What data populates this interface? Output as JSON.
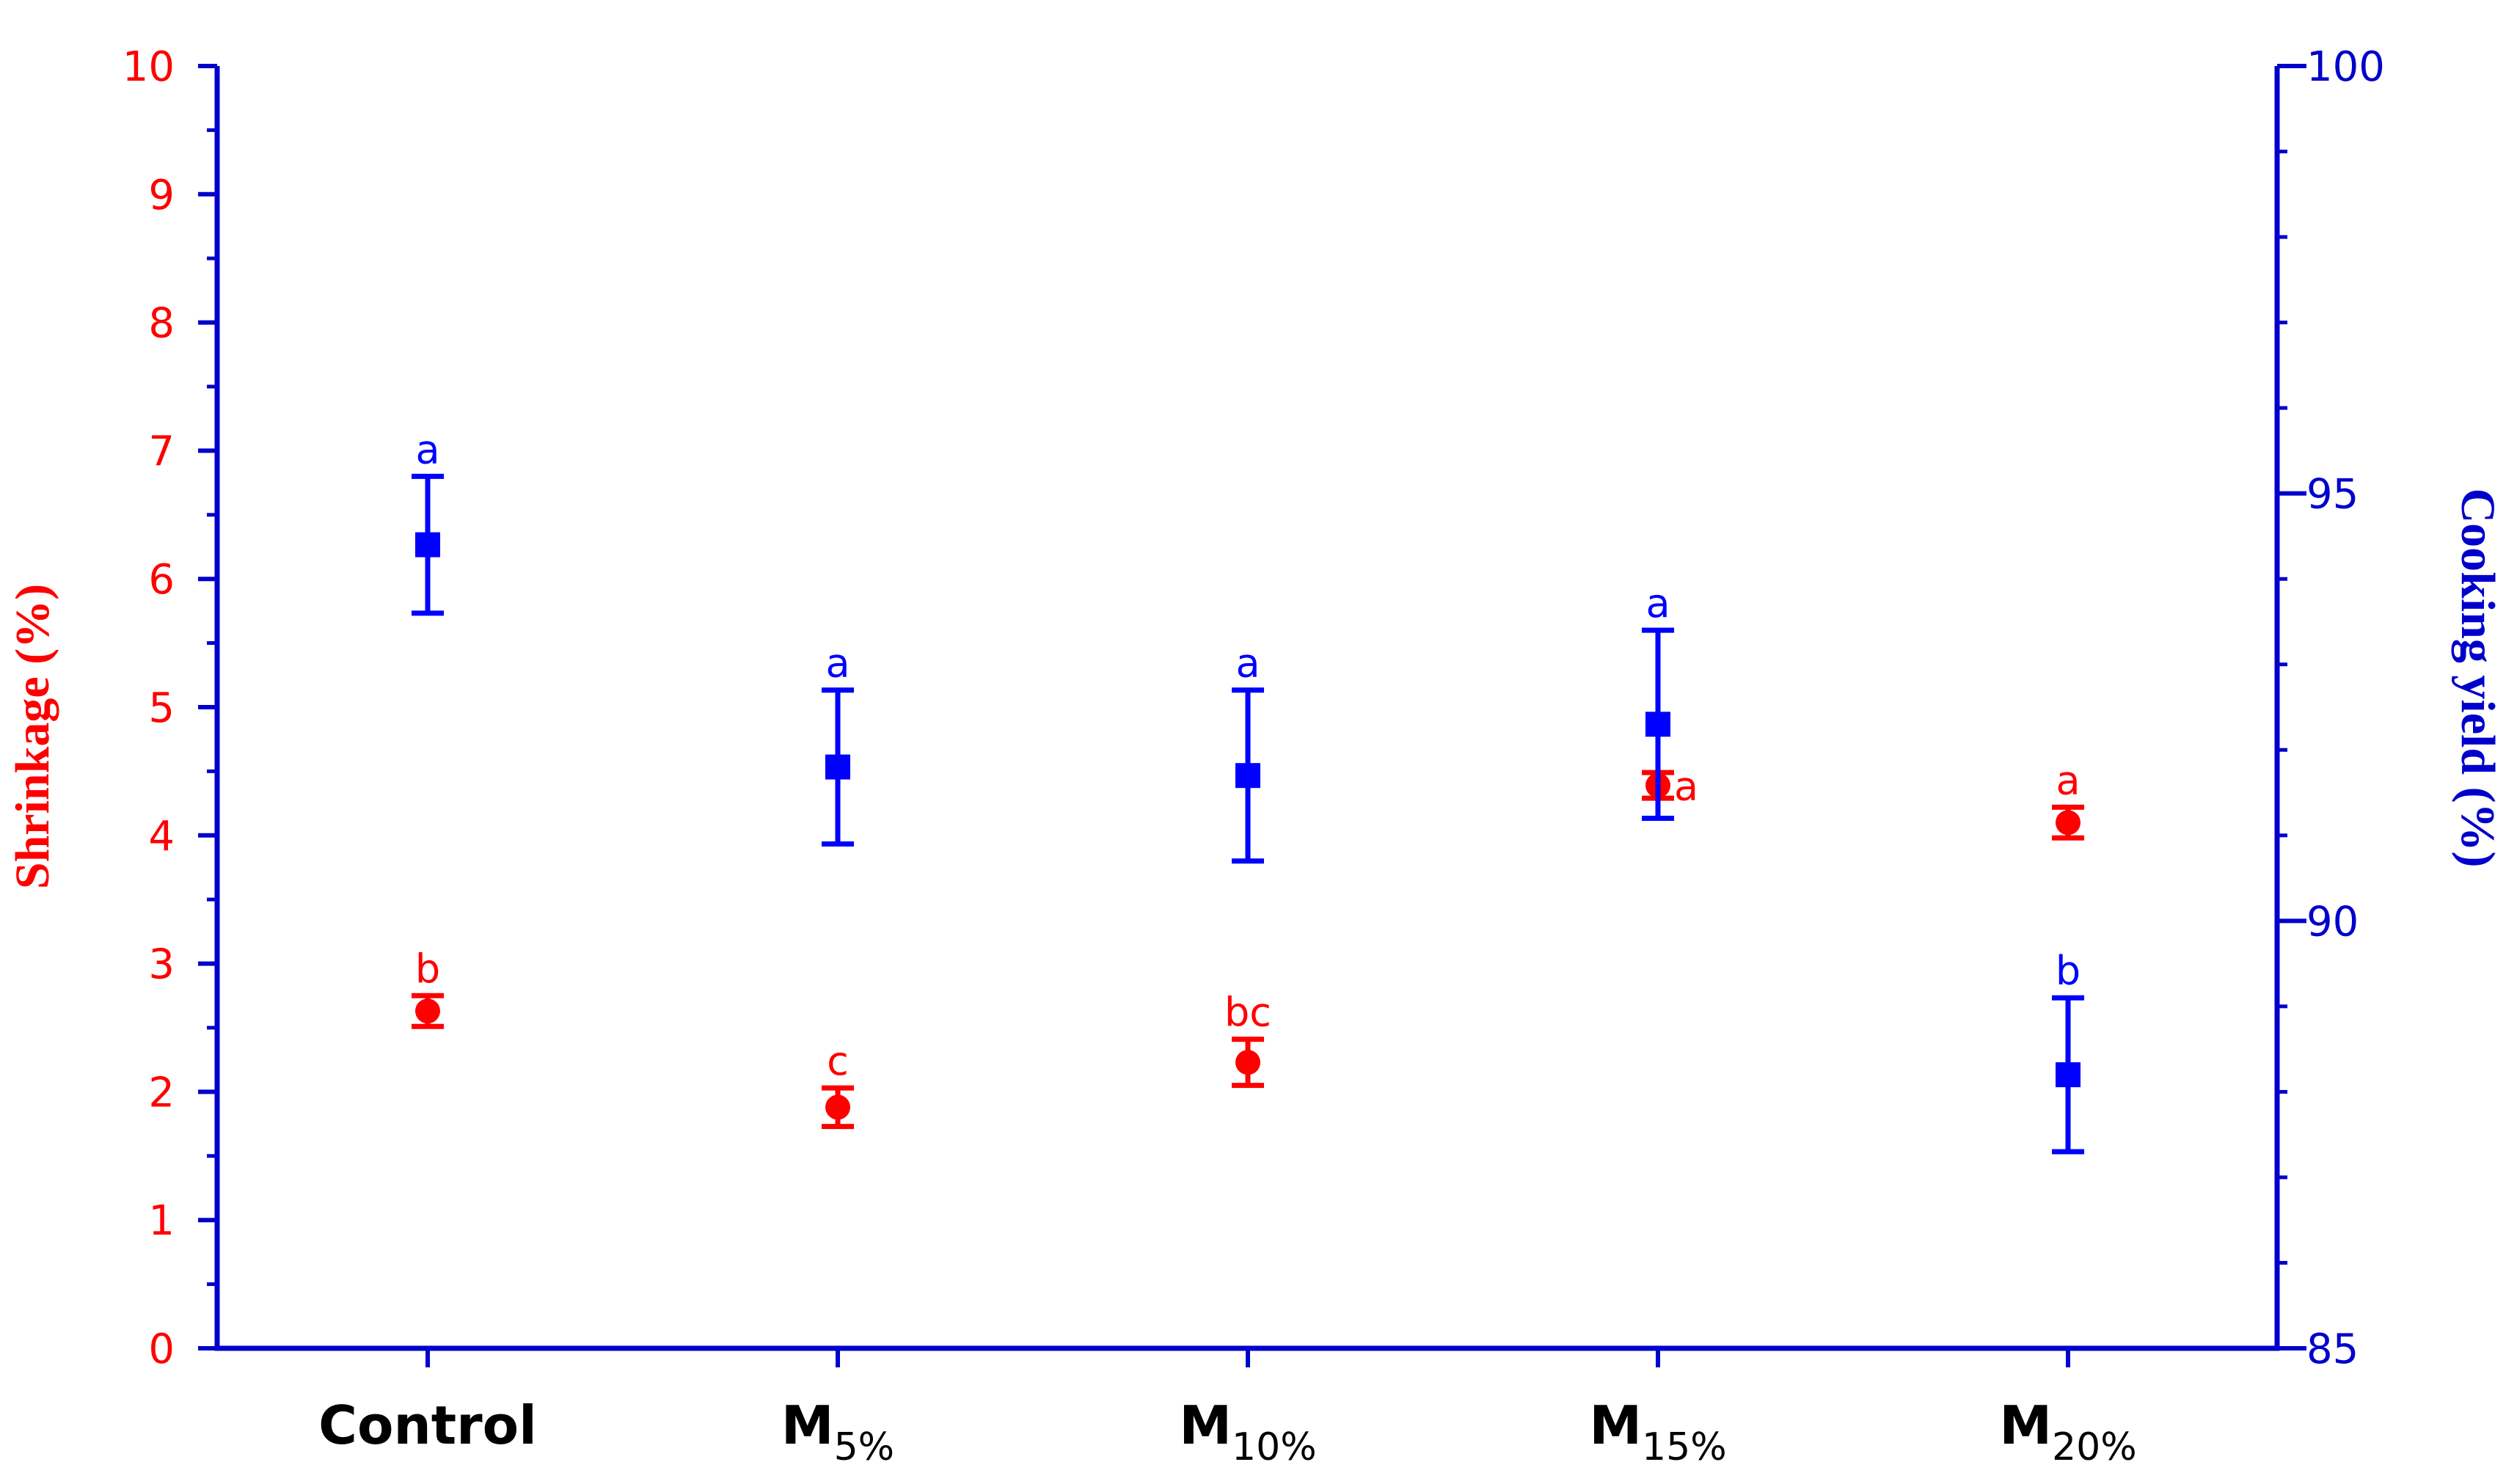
{
  "chart_data": {
    "type": "scatter",
    "categories": [
      "Control",
      "M5%",
      "M10%",
      "M15%",
      "M20%"
    ],
    "x_tick_labels": [
      {
        "main": "Control",
        "sub": ""
      },
      {
        "main": "M",
        "sub": "5%"
      },
      {
        "main": "M",
        "sub": "10%"
      },
      {
        "main": "M",
        "sub": "15%"
      },
      {
        "main": "M",
        "sub": "20%"
      }
    ],
    "y_left": {
      "label": "Shrinkage (%)",
      "range": [
        0,
        10
      ],
      "ticks": [
        0,
        1,
        2,
        3,
        4,
        5,
        6,
        7,
        8,
        9,
        10
      ],
      "color": "#ff0000"
    },
    "y_right": {
      "label": "Cooking yield (%)",
      "range": [
        85,
        100
      ],
      "ticks": [
        85,
        90,
        95,
        100
      ],
      "color": "#0000cc"
    },
    "series": [
      {
        "axis": "left",
        "marker": "circle",
        "color": "#ff0000",
        "values": [
          2.63,
          1.88,
          2.23,
          4.39,
          4.1
        ],
        "errors": [
          0.12,
          0.15,
          0.18,
          0.1,
          0.12
        ],
        "letters": [
          "b",
          "c",
          "bc",
          "a",
          "a"
        ]
      },
      {
        "axis": "right",
        "marker": "square",
        "color": "#0000ff",
        "values": [
          94.4,
          91.8,
          91.7,
          92.3,
          88.2
        ],
        "errors": [
          0.8,
          0.9,
          1.0,
          1.1,
          0.9
        ],
        "letters": [
          "a",
          "a",
          "a",
          "a",
          "b"
        ]
      }
    ],
    "grid": false,
    "legend": "none"
  }
}
